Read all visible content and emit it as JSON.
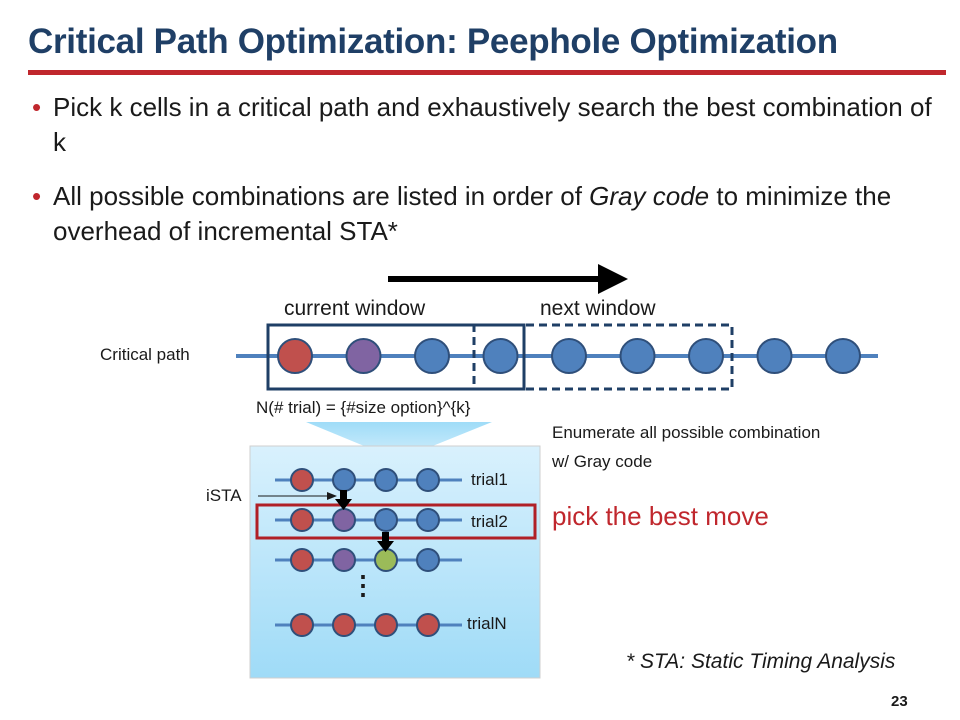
{
  "slide": {
    "title": "Critical Path Optimization: Peephole Optimization",
    "page_number": "23",
    "accent_color": "#c0272d",
    "title_color": "#1f3f66"
  },
  "bullets": [
    {
      "text": "Pick k cells in a critical path and exhaustively search the best combination of k"
    },
    {
      "text_before": "All possible combinations are listed in order of ",
      "emphasis": "Gray code",
      "text_after": " to minimize the overhead of incremental STA*"
    }
  ],
  "diagram": {
    "critical_path_label": "Critical path",
    "current_window_label": "current window",
    "next_window_label": "next window",
    "trial_count_formula": "N(# trial) = {#size option}^{k}",
    "enumerate_note": "Enumerate all possible combination w/ Gray code",
    "ista_label": "iSTA",
    "trial_labels": [
      "trial1",
      "trial2",
      "trialN"
    ],
    "ellipsis": "⋮",
    "pick_best_label": "pick the best move",
    "footnote": "* STA: Static Timing Analysis",
    "path_cells": [
      "red",
      "purple",
      "blue",
      "blue",
      "blue",
      "blue",
      "blue",
      "blue",
      "blue"
    ],
    "trial_rows": [
      [
        "red",
        "blue",
        "blue",
        "blue"
      ],
      [
        "red",
        "purple",
        "blue",
        "blue"
      ],
      [
        "red",
        "purple",
        "green",
        "blue"
      ],
      [
        "red",
        "red",
        "red",
        "red"
      ]
    ],
    "cell_colors": {
      "red": "#c0504d",
      "purple": "#8064a2",
      "blue": "#4f81bd",
      "green": "#9bbb59"
    }
  }
}
